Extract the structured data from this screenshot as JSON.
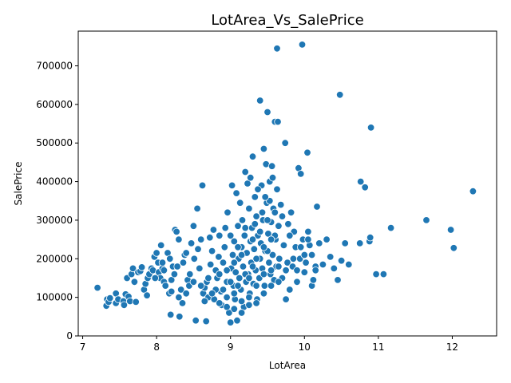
{
  "chart_data": {
    "type": "scatter",
    "title": "LotArea_Vs_SalePrice",
    "xlabel": "LotArea",
    "ylabel": "SalePrice",
    "xlim": [
      6.94,
      12.6
    ],
    "ylim": [
      0,
      790000
    ],
    "xticks": [
      7,
      8,
      9,
      10,
      11,
      12
    ],
    "yticks": [
      0,
      100000,
      200000,
      300000,
      400000,
      500000,
      600000,
      700000
    ],
    "grid": false,
    "legend": "none",
    "marker_color": "#1f77b4",
    "marker_edge": "#ffffff",
    "points": [
      [
        7.2,
        125000
      ],
      [
        7.32,
        78000
      ],
      [
        7.33,
        95000
      ],
      [
        7.35,
        88000
      ],
      [
        7.37,
        98000
      ],
      [
        7.45,
        85000
      ],
      [
        7.45,
        110000
      ],
      [
        7.48,
        95000
      ],
      [
        7.55,
        90000
      ],
      [
        7.56,
        80000
      ],
      [
        7.58,
        108000
      ],
      [
        7.6,
        150000
      ],
      [
        7.62,
        102000
      ],
      [
        7.64,
        90000
      ],
      [
        7.66,
        160000
      ],
      [
        7.68,
        175000
      ],
      [
        7.7,
        140000
      ],
      [
        7.72,
        88000
      ],
      [
        7.75,
        165000
      ],
      [
        7.78,
        168000
      ],
      [
        7.8,
        178000
      ],
      [
        7.83,
        120000
      ],
      [
        7.85,
        135000
      ],
      [
        7.87,
        105000
      ],
      [
        7.88,
        150000
      ],
      [
        7.9,
        160000
      ],
      [
        7.93,
        175000
      ],
      [
        7.95,
        170000
      ],
      [
        7.97,
        205000
      ],
      [
        8.0,
        215000
      ],
      [
        8.02,
        190000
      ],
      [
        8.03,
        165000
      ],
      [
        8.05,
        150000
      ],
      [
        8.06,
        235000
      ],
      [
        8.08,
        175000
      ],
      [
        8.1,
        140000
      ],
      [
        8.12,
        130000
      ],
      [
        8.15,
        215000
      ],
      [
        8.17,
        110000
      ],
      [
        8.19,
        55000
      ],
      [
        8.2,
        145000
      ],
      [
        8.22,
        180000
      ],
      [
        8.24,
        160000
      ],
      [
        8.25,
        275000
      ],
      [
        8.27,
        270000
      ],
      [
        8.3,
        250000
      ],
      [
        8.31,
        50000
      ],
      [
        8.33,
        120000
      ],
      [
        8.35,
        85000
      ],
      [
        8.36,
        190000
      ],
      [
        8.38,
        210000
      ],
      [
        8.4,
        215000
      ],
      [
        8.42,
        145000
      ],
      [
        8.44,
        130000
      ],
      [
        8.45,
        160000
      ],
      [
        8.47,
        240000
      ],
      [
        8.5,
        285000
      ],
      [
        8.51,
        200000
      ],
      [
        8.53,
        40000
      ],
      [
        8.55,
        330000
      ],
      [
        8.56,
        225000
      ],
      [
        8.58,
        175000
      ],
      [
        8.6,
        250000
      ],
      [
        8.62,
        390000
      ],
      [
        8.63,
        110000
      ],
      [
        8.65,
        125000
      ],
      [
        8.67,
        38000
      ],
      [
        8.68,
        140000
      ],
      [
        8.7,
        100000
      ],
      [
        8.72,
        255000
      ],
      [
        8.73,
        185000
      ],
      [
        8.75,
        220000
      ],
      [
        8.77,
        275000
      ],
      [
        8.78,
        95000
      ],
      [
        8.8,
        170000
      ],
      [
        8.82,
        150000
      ],
      [
        8.84,
        205000
      ],
      [
        8.85,
        260000
      ],
      [
        8.87,
        115000
      ],
      [
        8.88,
        80000
      ],
      [
        8.9,
        190000
      ],
      [
        8.92,
        230000
      ],
      [
        8.93,
        280000
      ],
      [
        8.95,
        140000
      ],
      [
        8.96,
        320000
      ],
      [
        8.98,
        60000
      ],
      [
        9.0,
        35000
      ],
      [
        9.01,
        175000
      ],
      [
        9.02,
        390000
      ],
      [
        9.03,
        210000
      ],
      [
        9.04,
        130000
      ],
      [
        9.05,
        245000
      ],
      [
        9.06,
        95000
      ],
      [
        9.07,
        165000
      ],
      [
        9.08,
        370000
      ],
      [
        9.09,
        40000
      ],
      [
        9.1,
        285000
      ],
      [
        9.11,
        200000
      ],
      [
        9.12,
        150000
      ],
      [
        9.13,
        345000
      ],
      [
        9.14,
        120000
      ],
      [
        9.15,
        230000
      ],
      [
        9.16,
        300000
      ],
      [
        9.17,
        180000
      ],
      [
        9.18,
        75000
      ],
      [
        9.19,
        260000
      ],
      [
        9.2,
        425000
      ],
      [
        9.21,
        140000
      ],
      [
        9.22,
        215000
      ],
      [
        9.23,
        395000
      ],
      [
        9.24,
        160000
      ],
      [
        9.25,
        330000
      ],
      [
        9.26,
        110000
      ],
      [
        9.27,
        245000
      ],
      [
        9.28,
        190000
      ],
      [
        9.29,
        280000
      ],
      [
        9.3,
        465000
      ],
      [
        9.31,
        135000
      ],
      [
        9.32,
        225000
      ],
      [
        9.33,
        360000
      ],
      [
        9.34,
        170000
      ],
      [
        9.35,
        310000
      ],
      [
        9.36,
        95000
      ],
      [
        9.37,
        260000
      ],
      [
        9.38,
        200000
      ],
      [
        9.39,
        150000
      ],
      [
        9.4,
        610000
      ],
      [
        9.41,
        240000
      ],
      [
        9.42,
        390000
      ],
      [
        9.43,
        175000
      ],
      [
        9.44,
        300000
      ],
      [
        9.45,
        485000
      ],
      [
        9.46,
        130000
      ],
      [
        9.47,
        220000
      ],
      [
        9.48,
        445000
      ],
      [
        9.49,
        345000
      ],
      [
        9.5,
        580000
      ],
      [
        9.51,
        265000
      ],
      [
        9.52,
        190000
      ],
      [
        9.53,
        400000
      ],
      [
        9.54,
        160000
      ],
      [
        9.55,
        295000
      ],
      [
        9.56,
        440000
      ],
      [
        9.57,
        210000
      ],
      [
        9.58,
        330000
      ],
      [
        9.59,
        145000
      ],
      [
        9.6,
        555000
      ],
      [
        9.61,
        250000
      ],
      [
        9.62,
        180000
      ],
      [
        9.63,
        745000
      ],
      [
        9.64,
        555000
      ],
      [
        9.65,
        285000
      ],
      [
        9.66,
        200000
      ],
      [
        9.68,
        340000
      ],
      [
        9.7,
        150000
      ],
      [
        9.72,
        235000
      ],
      [
        9.74,
        500000
      ],
      [
        9.75,
        95000
      ],
      [
        9.77,
        190000
      ],
      [
        9.78,
        290000
      ],
      [
        9.8,
        120000
      ],
      [
        9.82,
        320000
      ],
      [
        9.84,
        180000
      ],
      [
        9.86,
        270000
      ],
      [
        9.88,
        230000
      ],
      [
        9.9,
        140000
      ],
      [
        9.92,
        435000
      ],
      [
        9.94,
        200000
      ],
      [
        9.95,
        420000
      ],
      [
        9.97,
        755000
      ],
      [
        9.98,
        250000
      ],
      [
        10.0,
        165000
      ],
      [
        10.02,
        190000
      ],
      [
        10.04,
        475000
      ],
      [
        10.05,
        270000
      ],
      [
        10.07,
        235000
      ],
      [
        10.1,
        130000
      ],
      [
        10.12,
        145000
      ],
      [
        10.15,
        180000
      ],
      [
        10.17,
        335000
      ],
      [
        10.2,
        240000
      ],
      [
        10.25,
        185000
      ],
      [
        10.3,
        250000
      ],
      [
        10.35,
        205000
      ],
      [
        10.4,
        175000
      ],
      [
        10.45,
        145000
      ],
      [
        10.48,
        625000
      ],
      [
        10.5,
        195000
      ],
      [
        10.55,
        240000
      ],
      [
        10.6,
        185000
      ],
      [
        10.75,
        240000
      ],
      [
        10.76,
        400000
      ],
      [
        10.82,
        385000
      ],
      [
        10.88,
        245000
      ],
      [
        10.89,
        255000
      ],
      [
        10.9,
        540000
      ],
      [
        10.97,
        160000
      ],
      [
        11.07,
        160000
      ],
      [
        11.17,
        280000
      ],
      [
        11.65,
        300000
      ],
      [
        11.98,
        275000
      ],
      [
        12.02,
        228000
      ],
      [
        12.28,
        375000
      ],
      [
        8.9,
        120000
      ],
      [
        8.95,
        100000
      ],
      [
        9.0,
        140000
      ],
      [
        9.05,
        110000
      ],
      [
        9.1,
        130000
      ],
      [
        9.15,
        90000
      ],
      [
        9.2,
        160000
      ],
      [
        9.25,
        100000
      ],
      [
        9.3,
        180000
      ],
      [
        9.35,
        130000
      ],
      [
        9.4,
        200000
      ],
      [
        9.45,
        160000
      ],
      [
        9.5,
        220000
      ],
      [
        9.55,
        170000
      ],
      [
        9.6,
        260000
      ],
      [
        9.65,
        180000
      ],
      [
        9.0,
        260000
      ],
      [
        9.1,
        230000
      ],
      [
        9.2,
        280000
      ],
      [
        9.3,
        250000
      ],
      [
        9.4,
        270000
      ],
      [
        9.5,
        300000
      ],
      [
        9.6,
        320000
      ],
      [
        9.7,
        310000
      ],
      [
        8.6,
        130000
      ],
      [
        8.7,
        150000
      ],
      [
        8.8,
        120000
      ],
      [
        8.5,
        140000
      ],
      [
        8.4,
        110000
      ],
      [
        8.3,
        100000
      ],
      [
        8.2,
        115000
      ],
      [
        8.1,
        170000
      ],
      [
        9.25,
        150000
      ],
      [
        9.35,
        200000
      ],
      [
        9.45,
        230000
      ],
      [
        9.55,
        250000
      ],
      [
        9.15,
        210000
      ],
      [
        9.05,
        190000
      ],
      [
        8.95,
        170000
      ],
      [
        8.85,
        160000
      ],
      [
        9.33,
        290000
      ],
      [
        9.43,
        320000
      ],
      [
        9.53,
        350000
      ],
      [
        9.63,
        380000
      ],
      [
        9.27,
        410000
      ],
      [
        9.37,
        380000
      ],
      [
        9.47,
        360000
      ],
      [
        9.57,
        410000
      ],
      [
        9.8,
        260000
      ],
      [
        9.85,
        200000
      ],
      [
        9.9,
        170000
      ],
      [
        9.95,
        230000
      ],
      [
        10.0,
        210000
      ],
      [
        10.05,
        250000
      ],
      [
        10.1,
        210000
      ],
      [
        10.15,
        170000
      ],
      [
        8.65,
        90000
      ],
      [
        8.75,
        110000
      ],
      [
        8.85,
        85000
      ],
      [
        8.95,
        75000
      ],
      [
        9.05,
        70000
      ],
      [
        9.15,
        60000
      ],
      [
        9.25,
        80000
      ],
      [
        9.35,
        85000
      ],
      [
        9.45,
        110000
      ],
      [
        9.55,
        130000
      ],
      [
        9.65,
        140000
      ],
      [
        9.75,
        170000
      ],
      [
        7.98,
        150000
      ],
      [
        8.08,
        190000
      ],
      [
        8.18,
        200000
      ],
      [
        8.28,
        180000
      ]
    ]
  }
}
